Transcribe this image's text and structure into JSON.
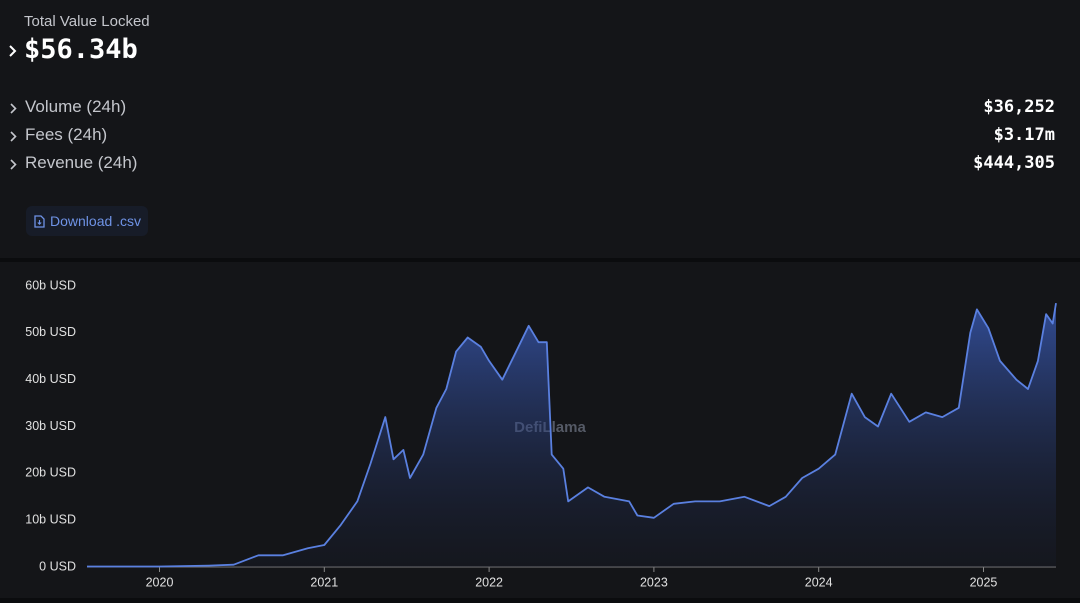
{
  "header": {
    "title": "Total Value Locked",
    "value": "$56.34b"
  },
  "metrics": [
    {
      "label": "Volume (24h)",
      "value": "$36,252"
    },
    {
      "label": "Fees (24h)",
      "value": "$3.17m"
    },
    {
      "label": "Revenue (24h)",
      "value": "$444,305"
    }
  ],
  "download": "Download .csv",
  "watermark": "DefiLlama",
  "chart_data": {
    "type": "area",
    "x": [
      2019.56,
      2020.0,
      2020.3,
      2020.45,
      2020.6,
      2020.75,
      2020.9,
      2021.0,
      2021.1,
      2021.2,
      2021.28,
      2021.37,
      2021.42,
      2021.48,
      2021.52,
      2021.6,
      2021.68,
      2021.74,
      2021.8,
      2021.87,
      2021.95,
      2022.0,
      2022.08,
      2022.15,
      2022.24,
      2022.3,
      2022.35,
      2022.38,
      2022.45,
      2022.48,
      2022.6,
      2022.7,
      2022.85,
      2022.9,
      2023.0,
      2023.12,
      2023.25,
      2023.4,
      2023.55,
      2023.7,
      2023.8,
      2023.9,
      2024.0,
      2024.1,
      2024.2,
      2024.28,
      2024.36,
      2024.44,
      2024.55,
      2024.65,
      2024.75,
      2024.85,
      2024.92,
      2024.96,
      2025.03,
      2025.1,
      2025.2,
      2025.27,
      2025.33,
      2025.38,
      2025.42,
      2025.44
    ],
    "series": [
      {
        "name": "TVL",
        "color": "#5a80e0",
        "values": [
          0.1,
          0.1,
          0.3,
          0.5,
          2.5,
          2.5,
          4,
          4.7,
          9,
          14,
          22,
          32,
          23,
          25,
          19,
          24,
          34,
          38,
          46,
          49,
          47,
          44,
          40,
          45,
          51.5,
          48,
          48,
          24,
          21,
          14,
          17,
          15,
          14,
          11,
          10.5,
          13.5,
          14,
          14,
          15,
          13,
          15,
          19,
          21,
          24,
          37,
          32,
          30,
          37,
          31,
          33,
          32,
          34,
          50,
          55,
          51,
          44,
          40,
          38,
          44,
          54,
          52,
          56.34
        ]
      }
    ],
    "xlim": [
      2019.56,
      2025.44
    ],
    "xticks": [
      2020,
      2021,
      2022,
      2023,
      2024,
      2025
    ],
    "ylim": [
      0,
      60
    ],
    "yticks": [
      {
        "value": 0,
        "label": "0 USD"
      },
      {
        "value": 10,
        "label": "10b USD"
      },
      {
        "value": 20,
        "label": "20b USD"
      },
      {
        "value": 30,
        "label": "30b USD"
      },
      {
        "value": 40,
        "label": "40b USD"
      },
      {
        "value": 50,
        "label": "50b USD"
      },
      {
        "value": 60,
        "label": "60b USD"
      }
    ]
  }
}
